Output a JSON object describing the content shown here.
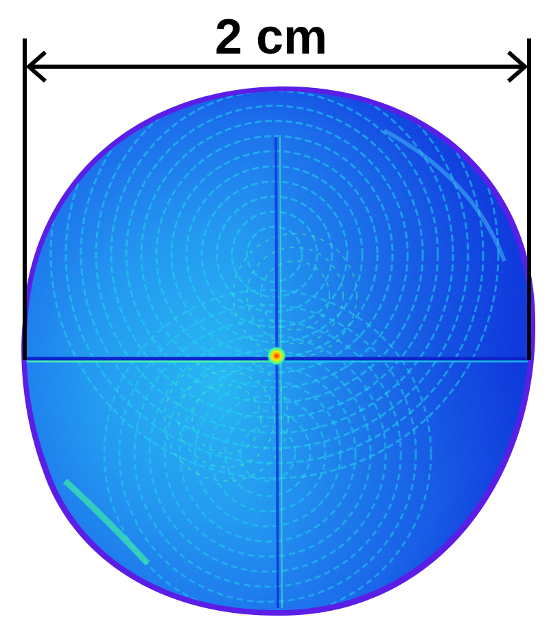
{
  "scale_bar": {
    "label": "2 cm"
  },
  "colors": {
    "background": "#ffffff",
    "scale_bar": "#000000",
    "rim": "#5a1ee6",
    "dark_blue": "#0a28e0",
    "mid_blue": "#1e6cf0",
    "light_blue": "#2aa8f2",
    "cyan": "#19d7e8",
    "green": "#3cff9a",
    "hotspot_yellow": "#ffe600",
    "hotspot_red": "#ff2a00"
  }
}
